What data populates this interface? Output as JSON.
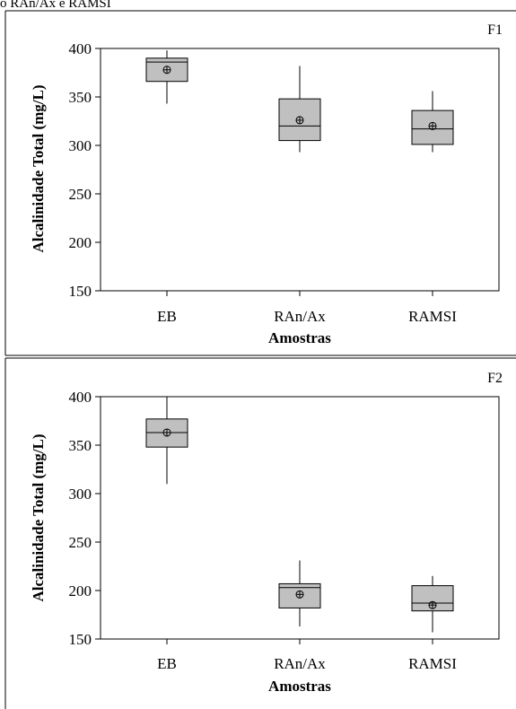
{
  "header": {
    "text": "o RAn/Ax e RAMSI"
  },
  "colors": {
    "box_fill": "#c0c0c0",
    "stroke": "#000000",
    "background": "#ffffff"
  },
  "chart_data": [
    {
      "type": "box",
      "panel_label": "F1",
      "xlabel": "Amostras",
      "ylabel": "Alcalinidade Total (mg/L)",
      "ylim": [
        150,
        400
      ],
      "yticks": [
        "150",
        "200",
        "250",
        "300",
        "350",
        "400"
      ],
      "categories": [
        "EB",
        "RAn/Ax",
        "RAMSI"
      ],
      "boxes": [
        {
          "min": 343,
          "q1": 366,
          "median": 386,
          "q3": 390,
          "max": 398,
          "mean": 378
        },
        {
          "min": 293,
          "q1": 305,
          "median": 320,
          "q3": 348,
          "max": 382,
          "mean": 326
        },
        {
          "min": 293,
          "q1": 301,
          "median": 317,
          "q3": 336,
          "max": 356,
          "mean": 320
        }
      ],
      "grid": false,
      "legend": "none"
    },
    {
      "type": "box",
      "panel_label": "F2",
      "xlabel": "Amostras",
      "ylabel": "Alcalinidade Total (mg/L)",
      "ylim": [
        150,
        400
      ],
      "yticks": [
        "150",
        "200",
        "250",
        "300",
        "350",
        "400"
      ],
      "categories": [
        "EB",
        "RAn/Ax",
        "RAMSI"
      ],
      "boxes": [
        {
          "min": 310,
          "q1": 348,
          "median": 363,
          "q3": 377,
          "max": 400,
          "mean": 363
        },
        {
          "min": 163,
          "q1": 182,
          "median": 203,
          "q3": 207,
          "max": 231,
          "mean": 196
        },
        {
          "min": 157,
          "q1": 179,
          "median": 187,
          "q3": 205,
          "max": 215,
          "mean": 185
        }
      ],
      "grid": false,
      "legend": "none"
    }
  ]
}
